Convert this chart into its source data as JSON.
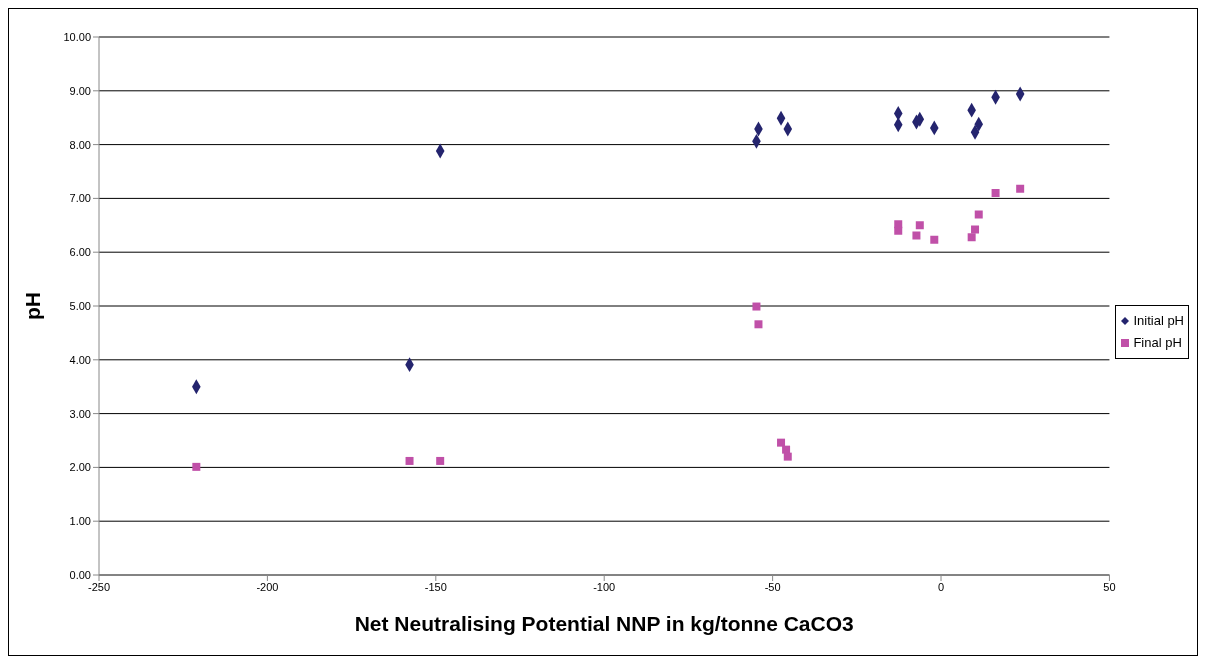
{
  "chart_data": {
    "type": "scatter",
    "xlabel": "Net Neutralising Potential NNP in kg/tonne CaCO3",
    "ylabel": "pH",
    "x": [
      -221.1,
      -157.8,
      -148.7,
      -54.8,
      -54.2,
      -47.5,
      -46,
      -45.5,
      -12.7,
      -12.7,
      -7.3,
      -6.3,
      -2,
      9.1,
      10.1,
      11.2,
      16.2,
      23.5
    ],
    "series": [
      {
        "name": "Initial pH",
        "color": "#24246e",
        "marker": "diamond",
        "values": [
          3.5,
          3.91,
          7.88,
          8.06,
          8.29,
          8.49,
          null,
          8.29,
          8.58,
          8.37,
          8.42,
          8.47,
          8.31,
          8.64,
          8.23,
          8.38,
          8.88,
          8.94
        ]
      },
      {
        "name": "Final pH",
        "color": "#c050a8",
        "marker": "square",
        "values": [
          2.01,
          2.12,
          2.12,
          4.99,
          4.66,
          2.46,
          2.33,
          2.2,
          6.52,
          6.4,
          6.31,
          6.5,
          6.23,
          6.28,
          6.42,
          6.7,
          7.1,
          7.18
        ]
      }
    ],
    "xlim": [
      -250,
      50
    ],
    "xticks": [
      -250,
      -200,
      -150,
      -100,
      -50,
      0,
      50
    ],
    "ylim": [
      0,
      10
    ],
    "yticks": [
      {
        "value": 0,
        "label": "0.00"
      },
      {
        "value": 1,
        "label": "1.00"
      },
      {
        "value": 2,
        "label": "2.00"
      },
      {
        "value": 3,
        "label": "3.00"
      },
      {
        "value": 4,
        "label": "4.00"
      },
      {
        "value": 5,
        "label": "5.00"
      },
      {
        "value": 6,
        "label": "6.00"
      },
      {
        "value": 7,
        "label": "7.00"
      },
      {
        "value": 8,
        "label": "8.00"
      },
      {
        "value": 9,
        "label": "9.00"
      },
      {
        "value": 10,
        "label": "10.00"
      }
    ],
    "grid": "y",
    "legend": "right"
  }
}
